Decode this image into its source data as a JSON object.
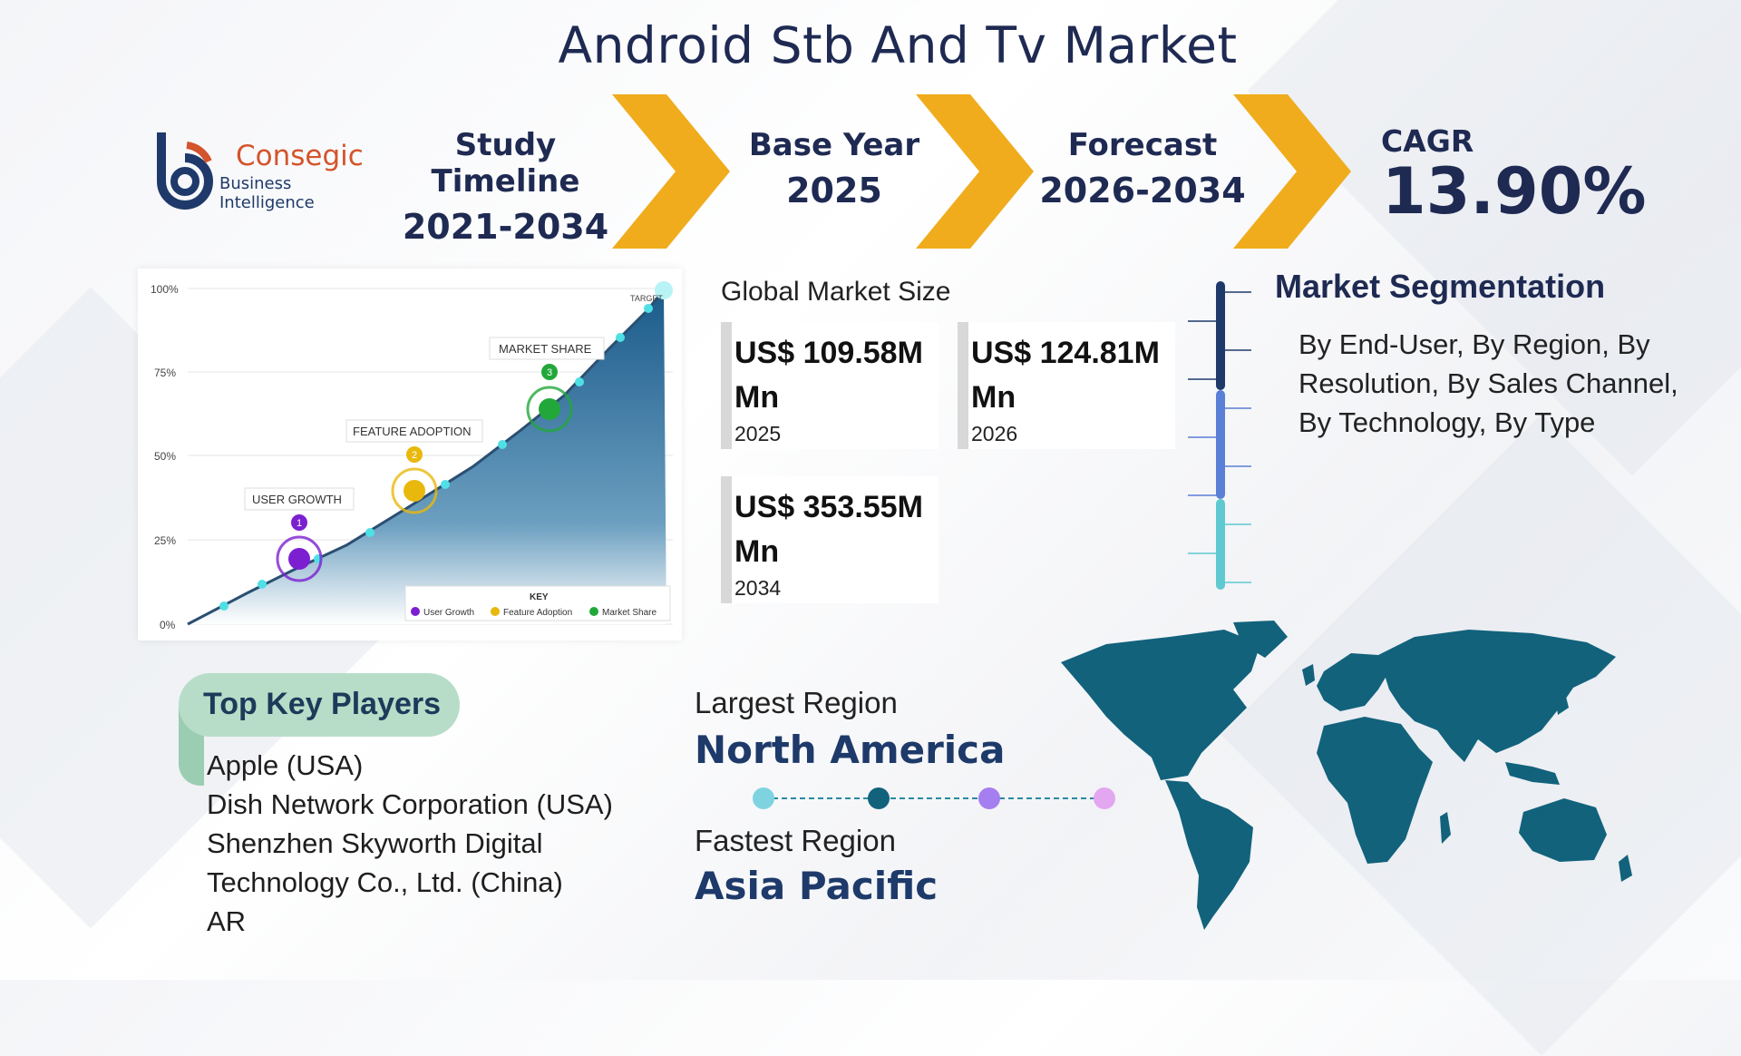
{
  "title": "Android Stb And Tv Market",
  "logo": {
    "name": "Consegic",
    "subtitle": "Business Intelligence"
  },
  "timeline": [
    {
      "label": "Study Timeline",
      "value": "2021-2034"
    },
    {
      "label": "Base Year",
      "value": "2025"
    },
    {
      "label": "Forecast",
      "value": "2026-2034"
    }
  ],
  "cagr": {
    "label": "CAGR",
    "value": "13.90%"
  },
  "chart_image": {
    "y_ticks": [
      "100%",
      "75%",
      "50%",
      "25%",
      "0%"
    ],
    "target_label": "TARGET",
    "milestones": [
      {
        "number": "1",
        "label": "USER GROWTH",
        "color": "#7b1fd1"
      },
      {
        "number": "2",
        "label": "FEATURE ADOPTION",
        "color": "#e8b80c"
      },
      {
        "number": "3",
        "label": "MARKET SHARE",
        "color": "#22a83a"
      }
    ],
    "key": {
      "title": "KEY",
      "items": [
        "User Growth",
        "Feature Adoption",
        "Market Share"
      ]
    }
  },
  "market_size": {
    "label": "Global Market Size",
    "cards": [
      {
        "value": "US$ 109.58M Mn",
        "year": "2025"
      },
      {
        "value": "US$ 124.81M Mn",
        "year": "2026"
      },
      {
        "value": "US$ 353.55M Mn",
        "year": "2034"
      }
    ]
  },
  "segmentation": {
    "title": "Market Segmentation",
    "text": "By End-User, By Region, By Resolution, By Sales Channel, By Technology, By Type"
  },
  "key_players": {
    "title": "Top Key Players",
    "items": [
      "Apple (USA)",
      "Dish Network Corporation (USA)",
      "Shenzhen Skyworth Digital Technology Co., Ltd. (China)",
      "AR"
    ]
  },
  "regions": {
    "largest_label": "Largest Region",
    "largest_value": "North America",
    "fastest_label": "Fastest Region",
    "fastest_value": "Asia Pacific"
  },
  "colors": {
    "navy": "#1e2a52",
    "chevron": "#f0ac1c",
    "map": "#12627c"
  }
}
